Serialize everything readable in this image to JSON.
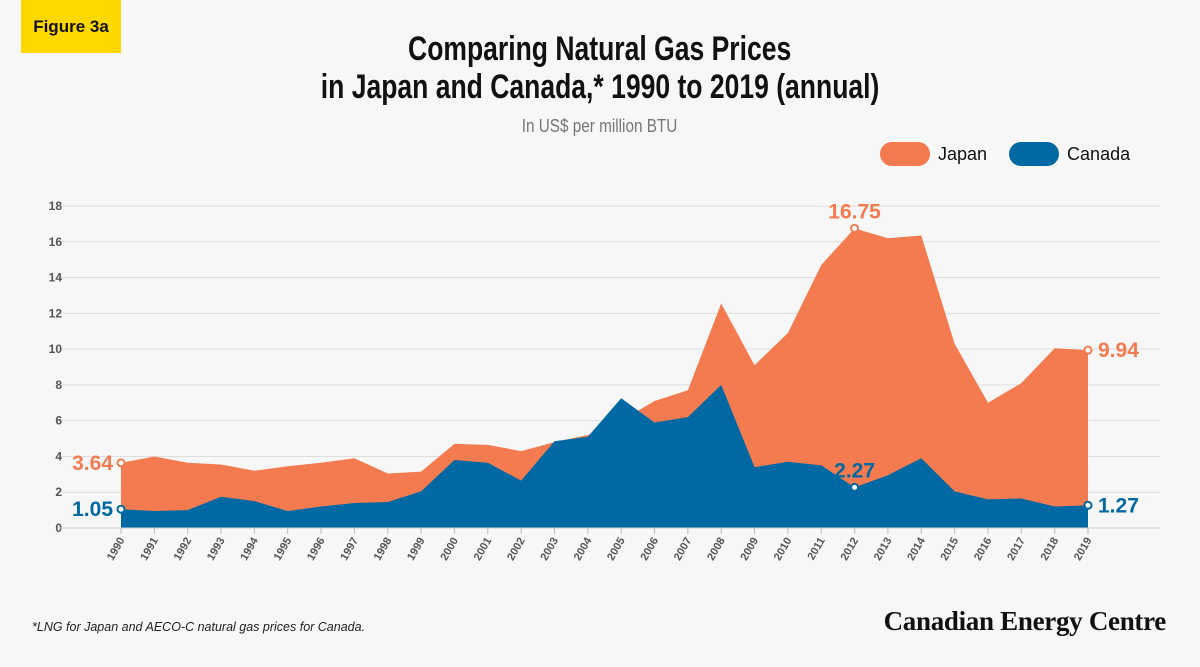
{
  "badge": "Figure 3a",
  "chart_data": {
    "type": "area",
    "title_line1": "Comparing Natural Gas Prices",
    "title_line2": "in Japan and Canada,* 1990 to 2019 (annual)",
    "subtitle": "In US$ per million BTU",
    "ylim": [
      0,
      18
    ],
    "yticks": [
      0,
      2,
      4,
      6,
      8,
      10,
      12,
      14,
      16,
      18
    ],
    "grid": true,
    "legend_placement": "top-right",
    "x": [
      "1990",
      "1991",
      "1992",
      "1993",
      "1994",
      "1995",
      "1996",
      "1997",
      "1998",
      "1999",
      "2000",
      "2001",
      "2002",
      "2003",
      "2004",
      "2005",
      "2006",
      "2007",
      "2008",
      "2009",
      "2010",
      "2011",
      "2012",
      "2013",
      "2014",
      "2015",
      "2016",
      "2017",
      "2018",
      "2019"
    ],
    "series": [
      {
        "name": "Japan",
        "color": "#f47b4f",
        "values": [
          3.64,
          4.0,
          3.65,
          3.55,
          3.2,
          3.45,
          3.65,
          3.9,
          3.05,
          3.15,
          4.7,
          4.65,
          4.3,
          4.8,
          5.2,
          6.0,
          7.1,
          7.7,
          12.55,
          9.1,
          10.9,
          14.7,
          16.75,
          16.2,
          16.35,
          10.3,
          7.0,
          8.1,
          10.05,
          9.94
        ]
      },
      {
        "name": "Canada",
        "color": "#0068a2",
        "values": [
          1.05,
          0.95,
          1.0,
          1.75,
          1.5,
          0.95,
          1.2,
          1.4,
          1.45,
          2.05,
          3.8,
          3.65,
          2.65,
          4.85,
          5.1,
          7.25,
          5.9,
          6.2,
          8.0,
          3.4,
          3.7,
          3.5,
          2.27,
          2.95,
          3.9,
          2.05,
          1.6,
          1.65,
          1.2,
          1.27
        ]
      }
    ],
    "annotations": [
      {
        "series": "Japan",
        "x": "1990",
        "label": "3.64",
        "side": "left"
      },
      {
        "series": "Canada",
        "x": "1990",
        "label": "1.05",
        "side": "left"
      },
      {
        "series": "Japan",
        "x": "2012",
        "label": "16.75",
        "side": "top"
      },
      {
        "series": "Canada",
        "x": "2012",
        "label": "2.27",
        "side": "top"
      },
      {
        "series": "Japan",
        "x": "2019",
        "label": "9.94",
        "side": "right"
      },
      {
        "series": "Canada",
        "x": "2019",
        "label": "1.27",
        "side": "right"
      }
    ]
  },
  "footnote": "*LNG for Japan and AECO-C natural gas prices for Canada.",
  "logo": "Canadian Energy Centre"
}
